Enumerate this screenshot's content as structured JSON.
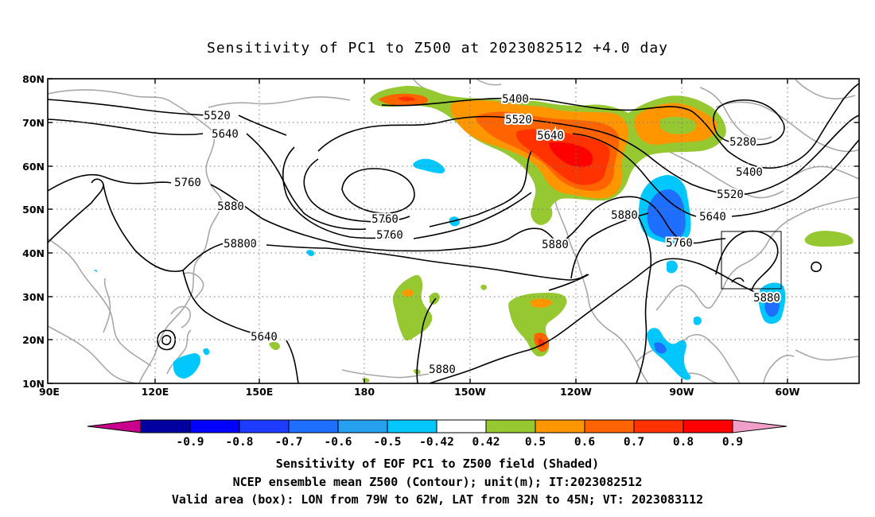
{
  "title": "Sensitivity of PC1 to Z500 at 2023082512 +4.0 day",
  "map": {
    "lat_ticks": [
      "80N",
      "70N",
      "60N",
      "50N",
      "40N",
      "30N",
      "20N",
      "10N"
    ],
    "lon_ticks": [
      "90E",
      "120E",
      "150E",
      "180",
      "150W",
      "120W",
      "90W",
      "60W"
    ],
    "contour_labels": [
      "5400",
      "5520",
      "5640",
      "5280",
      "5400",
      "5520",
      "5640",
      "5760",
      "5880",
      "5880",
      "5520",
      "5640",
      "5760",
      "5880",
      "5520",
      "5640",
      "5760",
      "5760",
      "5880",
      "5880",
      "5880"
    ],
    "valid_box": {
      "lon": [
        -79,
        -62
      ],
      "lat": [
        32,
        45
      ]
    }
  },
  "colorbar": {
    "labels": [
      "-0.9",
      "-0.8",
      "-0.7",
      "-0.6",
      "-0.5",
      "-0.42",
      "0.42",
      "0.5",
      "0.6",
      "0.7",
      "0.8",
      "0.9"
    ],
    "colors": [
      "#0000a0",
      "#0000ff",
      "#1e3cff",
      "#1e6eff",
      "#28a0f0",
      "#00c8ff",
      "#ffffff",
      "#96c832",
      "#ff9600",
      "#ff6400",
      "#ff3200",
      "#ff0000"
    ],
    "low_extension_color": "#c8008c",
    "high_extension_color": "#f0a0c8"
  },
  "footer": {
    "line1": "Sensitivity of EOF PC1 to Z500 field (Shaded)",
    "line2": "NCEP ensemble mean Z500 (Contour); unit(m); IT:2023082512",
    "line3": "Valid area (box): LON from 79W to 62W, LAT from 32N to 45N; VT: 2023083112"
  }
}
